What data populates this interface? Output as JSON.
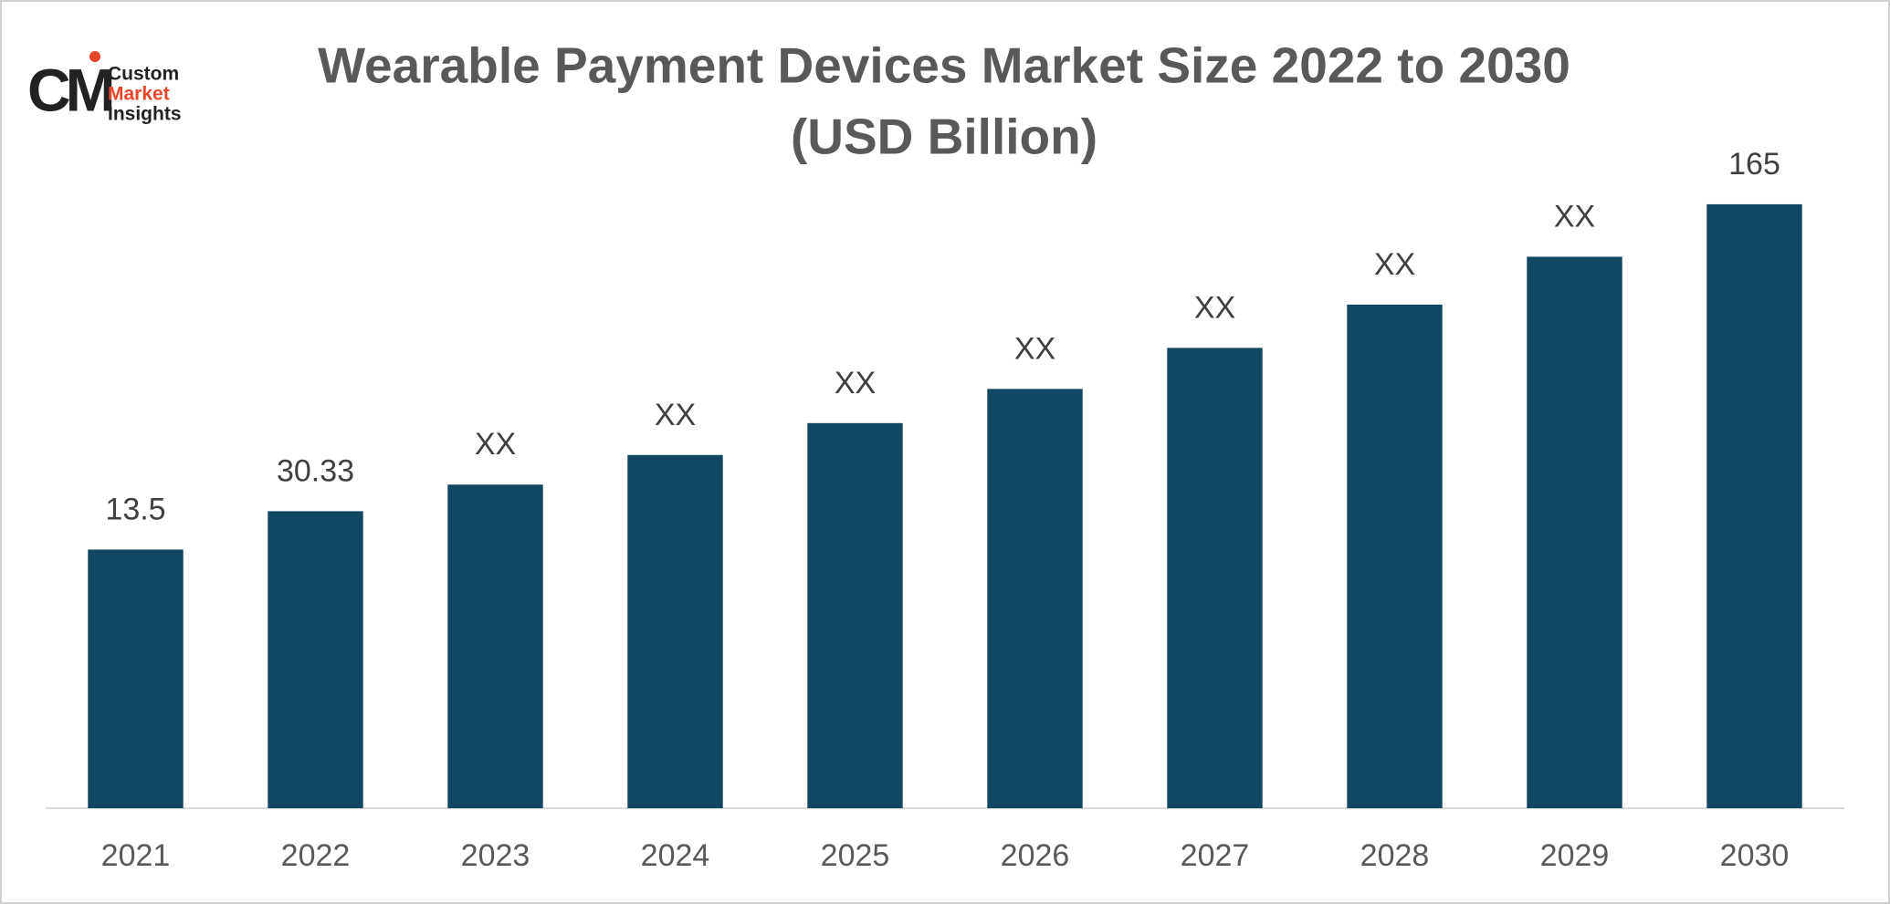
{
  "logo": {
    "mark": "CM",
    "lines": [
      "Custom",
      "Market",
      "Insights"
    ]
  },
  "chart_data": {
    "type": "bar",
    "title": "Wearable Payment Devices Market Size 2022 to 2030",
    "subtitle": "(USD Billion)",
    "categories": [
      "2021",
      "2022",
      "2023",
      "2024",
      "2025",
      "2026",
      "2027",
      "2028",
      "2029",
      "2030"
    ],
    "values": [
      13.5,
      30.33,
      42,
      55,
      69,
      84,
      102,
      121,
      142,
      165
    ],
    "value_labels": [
      "13.5",
      "30.33",
      "XX",
      "XX",
      "XX",
      "XX",
      "XX",
      "XX",
      "XX",
      "165"
    ],
    "color": "#124763",
    "ylim": [
      -100,
      175
    ],
    "grid": false
  }
}
